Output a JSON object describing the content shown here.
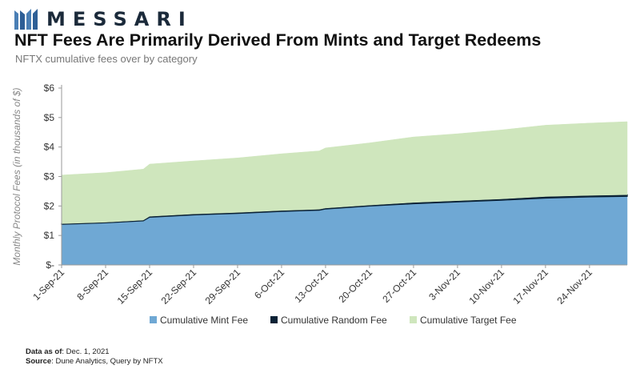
{
  "brand": {
    "name": "MESSARI"
  },
  "header": {
    "title": "NFT Fees Are Primarily Derived From Mints and Target Redeems",
    "subtitle": "NFTX cumulative fees over by category"
  },
  "footer": {
    "data_as_of_label": "Data as of",
    "data_as_of_value": ": Dec. 1, 2021",
    "source_label": "Source",
    "source_value": ": Dune Analytics, Query by NFTX"
  },
  "colors": {
    "mint": "#6fa8d4",
    "random": "#0b2236",
    "target": "#cfe6bd",
    "axis": "#9a9a9a"
  },
  "chart_data": {
    "type": "area",
    "stacked": true,
    "ylabel": "Monthly Protocol Fees (in thousands of $)",
    "xlabel": "",
    "ylim": [
      0,
      6
    ],
    "yticks": [
      0,
      1,
      2,
      3,
      4,
      5,
      6
    ],
    "ytick_labels": [
      "$-",
      "$1",
      "$2",
      "$3",
      "$4",
      "$5",
      "$6"
    ],
    "x_start": "2021-09-01",
    "x_end": "2021-11-30",
    "xtick_labels": [
      "1-Sep-21",
      "8-Sep-21",
      "15-Sep-21",
      "22-Sep-21",
      "29-Sep-21",
      "6-Oct-21",
      "13-Oct-21",
      "20-Oct-21",
      "27-Oct-21",
      "3-Nov-21",
      "10-Nov-21",
      "17-Nov-21",
      "24-Nov-21"
    ],
    "xtick_dates": [
      "2021-09-01",
      "2021-09-08",
      "2021-09-15",
      "2021-09-22",
      "2021-09-29",
      "2021-10-06",
      "2021-10-13",
      "2021-10-20",
      "2021-10-27",
      "2021-11-03",
      "2021-11-10",
      "2021-11-17",
      "2021-11-24"
    ],
    "grid": false,
    "legend_position": "bottom",
    "dates": [
      "2021-09-01",
      "2021-09-08",
      "2021-09-14",
      "2021-09-15",
      "2021-09-22",
      "2021-09-29",
      "2021-10-06",
      "2021-10-12",
      "2021-10-13",
      "2021-10-20",
      "2021-10-27",
      "2021-11-03",
      "2021-11-10",
      "2021-11-17",
      "2021-11-24",
      "2021-11-30"
    ],
    "series": [
      {
        "name": "Cumulative Mint Fee",
        "color": "#6fa8d4",
        "values": [
          1.38,
          1.43,
          1.5,
          1.62,
          1.7,
          1.75,
          1.82,
          1.86,
          1.9,
          2.0,
          2.08,
          2.14,
          2.2,
          2.27,
          2.31,
          2.33
        ]
      },
      {
        "name": "Cumulative Random Fee",
        "color": "#0b2236",
        "values": [
          0.02,
          0.02,
          0.02,
          0.03,
          0.03,
          0.03,
          0.03,
          0.03,
          0.03,
          0.03,
          0.04,
          0.04,
          0.04,
          0.05,
          0.05,
          0.05
        ]
      },
      {
        "name": "Cumulative Target Fee",
        "color": "#cfe6bd",
        "values": [
          1.65,
          1.68,
          1.73,
          1.77,
          1.8,
          1.85,
          1.92,
          1.98,
          2.04,
          2.11,
          2.22,
          2.27,
          2.34,
          2.42,
          2.45,
          2.48
        ]
      }
    ]
  }
}
